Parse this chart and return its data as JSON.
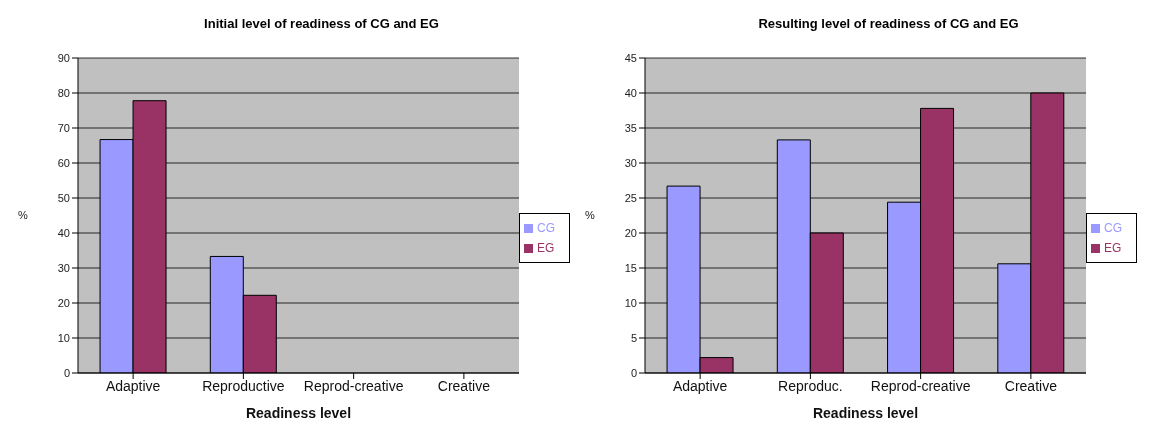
{
  "chart_data": [
    {
      "type": "bar",
      "title": "Initial level of readiness of CG and EG",
      "xlabel": "Readiness level",
      "ylabel": "%",
      "categories": [
        "Adaptive",
        "Reproductive",
        "Reprod-creative",
        "Creative"
      ],
      "series": [
        {
          "name": "CG",
          "color": "#9999ff",
          "values": [
            66.7,
            33.3,
            null,
            null
          ]
        },
        {
          "name": "EG",
          "color": "#993366",
          "values": [
            77.8,
            22.2,
            null,
            null
          ]
        }
      ],
      "ylim": [
        0,
        90
      ],
      "yticks": [
        0,
        10,
        20,
        30,
        40,
        50,
        60,
        70,
        80,
        90
      ],
      "grid": "y",
      "legend": "right"
    },
    {
      "type": "bar",
      "title": "Resulting level of readiness of CG and EG",
      "xlabel": "Readiness level",
      "ylabel": "%",
      "categories": [
        "Adaptive",
        "Reproduc.",
        "Reprod-creative",
        "Creative"
      ],
      "series": [
        {
          "name": "CG",
          "color": "#9999ff",
          "values": [
            26.7,
            33.3,
            24.4,
            15.6
          ]
        },
        {
          "name": "EG",
          "color": "#993366",
          "values": [
            2.2,
            20,
            37.8,
            40
          ]
        }
      ],
      "ylim": [
        0,
        45
      ],
      "yticks": [
        0,
        5,
        10,
        15,
        20,
        25,
        30,
        35,
        40,
        45
      ],
      "grid": "y",
      "legend": "right"
    }
  ]
}
